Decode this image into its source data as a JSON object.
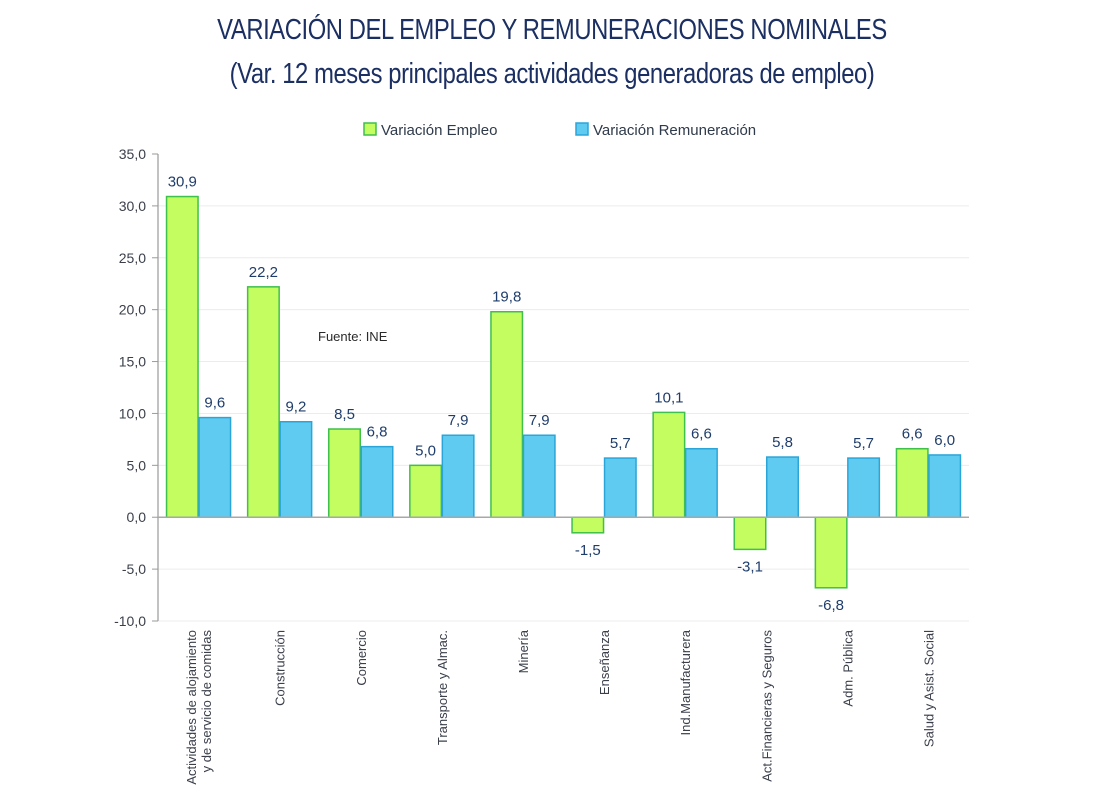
{
  "chart_data": {
    "type": "bar",
    "title": "VARIACIÓN DEL EMPLEO Y REMUNERACIONES NOMINALES",
    "subtitle": "(Var. 12 meses principales actividades generadoras de empleo)",
    "xlabel": "",
    "ylabel": "",
    "ylim": [
      -10,
      35
    ],
    "yticks": [
      "35,0",
      "30,0",
      "25,0",
      "20,0",
      "15,0",
      "10,0",
      "5,0",
      "0,0",
      "-5,0",
      "-10,0"
    ],
    "ytick_values": [
      35,
      30,
      25,
      20,
      15,
      10,
      5,
      0,
      -5,
      -10
    ],
    "grid": true,
    "legend_position": "top-center",
    "annotation": "Fuente: INE",
    "categories": [
      [
        "Actividades de alojamiento",
        "y de servicio de comidas"
      ],
      [
        "Construcción"
      ],
      [
        "Comercio"
      ],
      [
        "Transporte y Almac."
      ],
      [
        "Minería"
      ],
      [
        "Enseñanza"
      ],
      [
        "Ind.Manufacturera"
      ],
      [
        "Act.Financieras y Seguros"
      ],
      [
        "Adm. Pública"
      ],
      [
        "Salud y Asist. Social"
      ]
    ],
    "series": [
      {
        "name": "Variación Empleo",
        "color": "#c3fd5f",
        "border": "#3fbf4c",
        "values": [
          30.9,
          22.2,
          8.5,
          5.0,
          19.8,
          -1.5,
          10.1,
          -3.1,
          -6.8,
          6.6
        ],
        "labels": [
          "30,9",
          "22,2",
          "8,5",
          "5,0",
          "19,8",
          "-1,5",
          "10,1",
          "-3,1",
          "-6,8",
          "6,6"
        ]
      },
      {
        "name": "Variación Remuneración",
        "color": "#5fcbf1",
        "border": "#2ba5d8",
        "values": [
          9.6,
          9.2,
          6.8,
          7.9,
          7.9,
          5.7,
          6.6,
          5.8,
          5.7,
          6.0
        ],
        "labels": [
          "9,6",
          "9,2",
          "6,8",
          "7,9",
          "7,9",
          "5,7",
          "6,6",
          "5,8",
          "5,7",
          "6,0"
        ]
      }
    ]
  }
}
